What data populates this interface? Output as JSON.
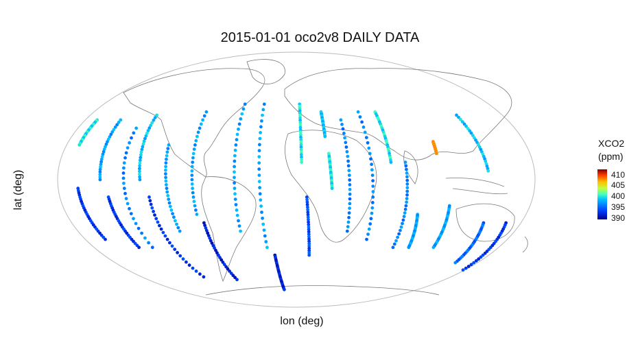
{
  "title": "2015-01-01 oco2v8 DAILY DATA",
  "xlabel": "lon (deg)",
  "ylabel": "lat (deg)",
  "legend": {
    "title_line1": "XCO2",
    "title_line2": "(ppm)",
    "ticks": [
      "410",
      "405",
      "400",
      "395",
      "390"
    ]
  },
  "colors": {
    "low": "#00008f",
    "mid_low": "#0050ff",
    "mid": "#30e0d0",
    "mid_high": "#a0ff50",
    "high": "#ff4000",
    "land_outline": "#777777",
    "ellipse_outline": "#bbbbbb"
  },
  "chart_data": {
    "type": "scatter",
    "projection": "mollweide",
    "xlim": [
      -180,
      180
    ],
    "ylim": [
      -90,
      90
    ],
    "colorbar_range": [
      390,
      410
    ],
    "tracks": [
      {
        "lon": [
          -170,
          -170
        ],
        "lat": [
          35,
          20
        ],
        "xco2": 399
      },
      {
        "lon": [
          -165,
          -163
        ],
        "lat": [
          -5,
          -35
        ],
        "xco2": 393
      },
      {
        "lon": [
          -150,
          -148
        ],
        "lat": [
          35,
          0
        ],
        "xco2": 397
      },
      {
        "lon": [
          -143,
          -140
        ],
        "lat": [
          -10,
          -40
        ],
        "xco2": 393
      },
      {
        "lon": [
          -132,
          -128
        ],
        "lat": [
          30,
          -40
        ],
        "xco2": 396
      },
      {
        "lon": [
          -122,
          -118
        ],
        "lat": [
          38,
          0
        ],
        "xco2": 398
      },
      {
        "lon": [
          -112,
          -108
        ],
        "lat": [
          -10,
          -60
        ],
        "xco2": 393
      },
      {
        "lon": [
          -100,
          -96
        ],
        "lat": [
          20,
          -30
        ],
        "xco2": 397
      },
      {
        "lon": [
          -80,
          -78
        ],
        "lat": [
          40,
          -20
        ],
        "xco2": 397
      },
      {
        "lon": [
          -74,
          -72
        ],
        "lat": [
          -25,
          -62
        ],
        "xco2": 392
      },
      {
        "lon": [
          -48,
          -46
        ],
        "lat": [
          45,
          -30
        ],
        "xco2": 397
      },
      {
        "lon": [
          -30,
          -26
        ],
        "lat": [
          45,
          -40
        ],
        "xco2": 397
      },
      {
        "lon": [
          -20,
          -18
        ],
        "lat": [
          -45,
          -70
        ],
        "xco2": 392
      },
      {
        "lon": [
          3,
          4
        ],
        "lat": [
          45,
          10
        ],
        "xco2": 399
      },
      {
        "lon": [
          8,
          12
        ],
        "lat": [
          -10,
          -45
        ],
        "xco2": 394
      },
      {
        "lon": [
          22,
          23
        ],
        "lat": [
          40,
          25
        ],
        "xco2": 398
      },
      {
        "lon": [
          25,
          27
        ],
        "lat": [
          15,
          -5
        ],
        "xco2": 399
      },
      {
        "lon": [
          38,
          42
        ],
        "lat": [
          35,
          -30
        ],
        "xco2": 396
      },
      {
        "lon": [
          55,
          60
        ],
        "lat": [
          40,
          -35
        ],
        "xco2": 396
      },
      {
        "lon": [
          70,
          72
        ],
        "lat": [
          40,
          10
        ],
        "xco2": 399
      },
      {
        "lon": [
          83,
          86
        ],
        "lat": [
          10,
          -40
        ],
        "xco2": 396
      },
      {
        "lon": [
          95,
          100
        ],
        "lat": [
          -20,
          -40
        ],
        "xco2": 397
      },
      {
        "lon": [
          108,
          108
        ],
        "lat": [
          22,
          15
        ],
        "xco2": 406
      },
      {
        "lon": [
          118,
          122
        ],
        "lat": [
          -15,
          -40
        ],
        "xco2": 397
      },
      {
        "lon": [
          140,
          145
        ],
        "lat": [
          38,
          5
        ],
        "xco2": 398
      },
      {
        "lon": [
          150,
          158
        ],
        "lat": [
          -25,
          -50
        ],
        "xco2": 395
      },
      {
        "lon": [
          168,
          178
        ],
        "lat": [
          -25,
          -55
        ],
        "xco2": 393
      }
    ]
  }
}
